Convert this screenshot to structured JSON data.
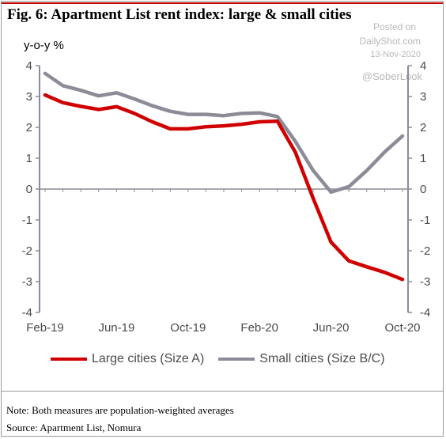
{
  "title": "Fig. 6:  Apartment List rent index: large & small cities",
  "watermark": {
    "line1": "Posted on",
    "line2": "DailyShot.com",
    "line3": "13-Nov-2020",
    "handle": "@SoberLook"
  },
  "unit_label": "y-o-y %",
  "footer": {
    "note": "Note:  Both measures are population-weighted averages",
    "source": "Source: Apartment List, Nomura"
  },
  "colors": {
    "large": "#d00000",
    "small": "#8c8c99",
    "axis": "#8c8c99",
    "text": "#4a4a4a"
  },
  "chart_data": {
    "type": "line",
    "title": "Apartment List rent index: large & small cities",
    "ylabel": "y-o-y %",
    "xlabel": "",
    "ylim": [
      -4,
      4
    ],
    "yticks": [
      4,
      3,
      2,
      1,
      0,
      -1,
      -2,
      -3,
      -4
    ],
    "grid": false,
    "legend_position": "bottom",
    "x": [
      "Feb-19",
      "Mar-19",
      "Apr-19",
      "May-19",
      "Jun-19",
      "Jul-19",
      "Aug-19",
      "Sep-19",
      "Oct-19",
      "Nov-19",
      "Dec-19",
      "Jan-20",
      "Feb-20",
      "Mar-20",
      "Apr-20",
      "May-20",
      "Jun-20",
      "Jul-20",
      "Aug-20",
      "Sep-20",
      "Oct-20"
    ],
    "xtick_labels": [
      "Feb-19",
      "Jun-19",
      "Oct-19",
      "Feb-20",
      "Jun-20",
      "Oct-20"
    ],
    "xtick_positions": [
      "Feb-19",
      "Jun-19",
      "Oct-19",
      "Feb-20",
      "Jun-20",
      "Oct-20"
    ],
    "series": [
      {
        "name": "Large cities (Size A)",
        "color": "#d00000",
        "values": [
          3.05,
          2.8,
          2.68,
          2.58,
          2.67,
          2.45,
          2.18,
          1.95,
          1.95,
          2.02,
          2.05,
          2.1,
          2.18,
          2.2,
          1.2,
          -0.3,
          -1.72,
          -2.33,
          -2.52,
          -2.7,
          -2.93
        ]
      },
      {
        "name": "Small cities (Size B/C)",
        "color": "#8c8c99",
        "values": [
          3.75,
          3.35,
          3.2,
          3.02,
          3.12,
          2.92,
          2.7,
          2.52,
          2.42,
          2.42,
          2.38,
          2.45,
          2.47,
          2.35,
          1.55,
          0.6,
          -0.1,
          0.08,
          0.6,
          1.2,
          1.72
        ]
      }
    ]
  }
}
